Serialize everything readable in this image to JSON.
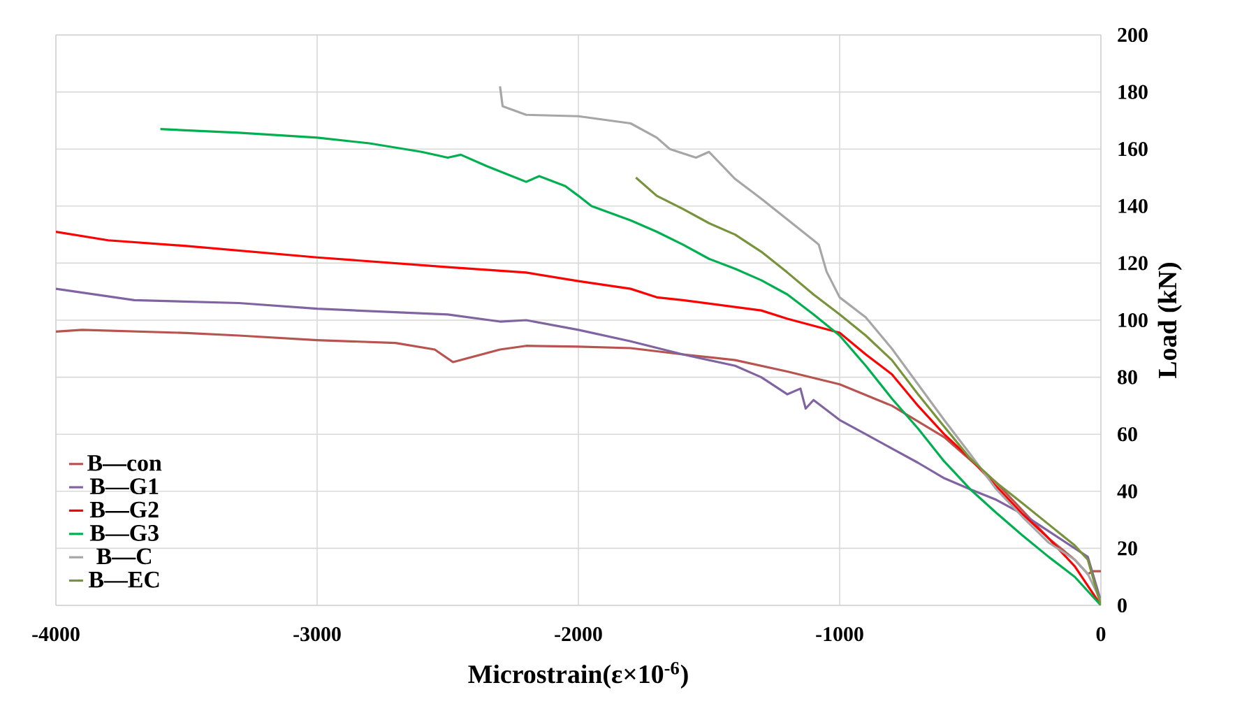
{
  "chart_data": {
    "type": "line",
    "xlabel": "Microstrain(ε×10$^{-6}$)",
    "ylabel": "Load (kN)",
    "xlim": [
      -4000,
      0
    ],
    "xticks": [
      -4000,
      -3000,
      -2000,
      -1000,
      0
    ],
    "ylim": [
      0,
      200
    ],
    "yticks": [
      0,
      20,
      40,
      60,
      80,
      100,
      120,
      140,
      160,
      180,
      200
    ],
    "grid": true,
    "legend": "bottom left",
    "marker": "none",
    "line_style": "solid",
    "series": [
      {
        "name": "B—con",
        "color": "#b85450",
        "x": [
          -4000,
          -3900,
          -3500,
          -3300,
          -3000,
          -2700,
          -2550,
          -2480,
          -2300,
          -2200,
          -2000,
          -1800,
          -1600,
          -1400,
          -1200,
          -1000,
          -800,
          -600,
          -400,
          -200,
          -100,
          -50,
          -30,
          0
        ],
        "values": [
          96,
          96.6,
          95.5,
          94.6,
          93,
          92,
          89.7,
          85.3,
          89.7,
          91,
          90.7,
          90.2,
          88,
          86,
          82,
          77.5,
          70,
          59,
          43,
          23.5,
          16,
          11,
          12,
          12
        ]
      },
      {
        "name": "B—G1",
        "color": "#8064a2",
        "x": [
          -4000,
          -3700,
          -3300,
          -3000,
          -2500,
          -2300,
          -2200,
          -2000,
          -1800,
          -1600,
          -1400,
          -1300,
          -1200,
          -1150,
          -1130,
          -1100,
          -1000,
          -900,
          -800,
          -700,
          -600,
          -500,
          -400,
          -300,
          -200,
          -100,
          -50,
          0
        ],
        "values": [
          111,
          107,
          106,
          104,
          102,
          99.5,
          100,
          96.6,
          92.6,
          88,
          84,
          80,
          74,
          76,
          69,
          72,
          65,
          60,
          55,
          50,
          44.6,
          40.7,
          37,
          32,
          26,
          20,
          17,
          1.5
        ]
      },
      {
        "name": "B—G2",
        "color": "#ff0000",
        "x": [
          -4000,
          -3800,
          -3500,
          -3000,
          -2500,
          -2200,
          -2000,
          -1800,
          -1700,
          -1600,
          -1300,
          -1200,
          -1000,
          -900,
          -800,
          -700,
          -600,
          -500,
          -400,
          -300,
          -200,
          -100,
          0
        ],
        "values": [
          131,
          128,
          126,
          122,
          118.6,
          116.7,
          113.7,
          111,
          108,
          107,
          103.4,
          100.5,
          95.6,
          88,
          81,
          70,
          60,
          51.5,
          41.7,
          32,
          23.5,
          13.7,
          0
        ]
      },
      {
        "name": "B—G3",
        "color": "#00b050",
        "x": [
          -3600,
          -3300,
          -3000,
          -2800,
          -2600,
          -2500,
          -2450,
          -2350,
          -2200,
          -2150,
          -2050,
          -2000,
          -1950,
          -1800,
          -1700,
          -1600,
          -1500,
          -1400,
          -1300,
          -1200,
          -1100,
          -1000,
          -900,
          -800,
          -700,
          -600,
          -500,
          -400,
          -300,
          -200,
          -100,
          0
        ],
        "values": [
          167,
          165.7,
          164,
          162,
          159,
          157,
          158,
          154,
          148.5,
          150.5,
          147,
          143.6,
          140,
          135,
          131,
          126.5,
          121.5,
          118,
          114,
          109,
          102,
          94.6,
          84,
          72.5,
          62,
          50.5,
          40.7,
          32.4,
          24.5,
          17,
          10,
          0
        ]
      },
      {
        "name": "B—C",
        "color": "#a6a6a6",
        "x": [
          -2300,
          -2290,
          -2200,
          -2000,
          -1800,
          -1700,
          -1650,
          -1550,
          -1500,
          -1400,
          -1300,
          -1100,
          -1080,
          -1050,
          -1000,
          -900,
          -800,
          -700,
          -600,
          -500,
          -400,
          -300,
          -200,
          -100,
          -50,
          0
        ],
        "values": [
          182,
          175,
          172,
          171.5,
          169,
          164,
          160,
          157,
          159,
          149.5,
          142.6,
          128,
          126.5,
          117,
          108,
          101,
          90,
          77.5,
          65,
          53,
          40.7,
          31,
          22,
          16,
          11,
          1.5
        ]
      },
      {
        "name": "B—EC",
        "color": "#77933c",
        "x": [
          -1780,
          -1700,
          -1600,
          -1500,
          -1400,
          -1300,
          -1200,
          -1100,
          -1000,
          -900,
          -800,
          -700,
          -600,
          -500,
          -400,
          -300,
          -200,
          -100,
          -50,
          0
        ],
        "values": [
          150,
          143.6,
          139,
          134,
          130,
          124,
          116.7,
          109,
          102,
          94.6,
          86,
          74,
          62.7,
          51.5,
          43,
          35.8,
          28.4,
          21,
          16,
          0
        ]
      }
    ]
  }
}
